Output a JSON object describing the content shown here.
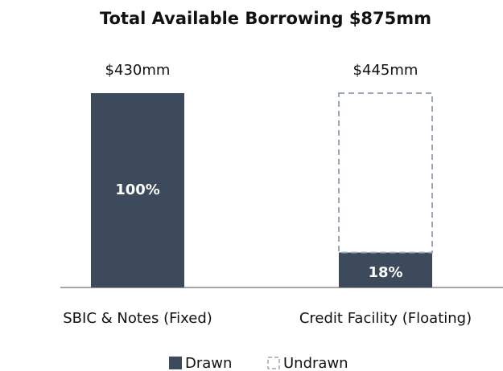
{
  "chart_data": {
    "type": "stacked_bar",
    "title": "Total Available Borrowing $875mm",
    "categories": [
      "SBIC & Notes (Fixed)",
      "Credit Facility (Floating)"
    ],
    "totals": [
      "$430mm",
      "$445mm"
    ],
    "series": [
      {
        "name": "Drawn",
        "color": "#3d4a5c",
        "values": [
          100,
          18
        ],
        "value_labels": [
          "100%",
          "18%"
        ]
      },
      {
        "name": "Undrawn",
        "color": "#9aa7b8",
        "dashed": true,
        "values": [
          0,
          82
        ]
      }
    ],
    "ylim": [
      0,
      100
    ]
  }
}
